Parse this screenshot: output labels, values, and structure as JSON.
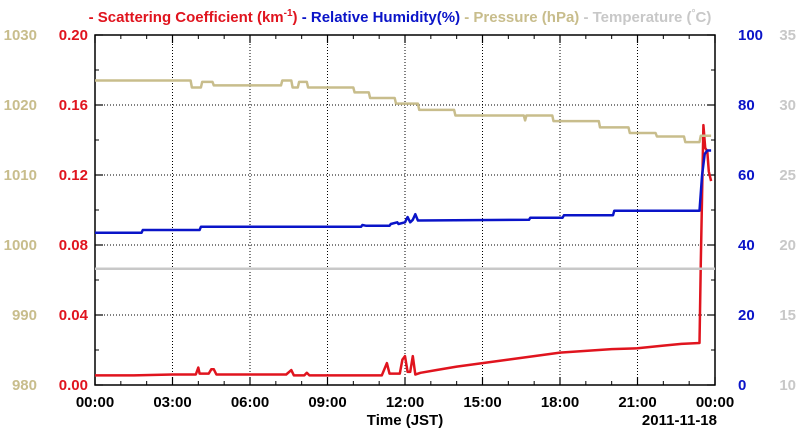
{
  "chart_data": {
    "type": "line",
    "legend": {
      "placement": "top",
      "entries": [
        {
          "prefix": "- ",
          "label": "Scattering Coefficient (km",
          "sup": "-1",
          "suffix": ")",
          "color": "#e0141e"
        },
        {
          "prefix": "- ",
          "label": "Relative Humidity(%)",
          "sup": "",
          "suffix": "",
          "color": "#0a14c8"
        },
        {
          "prefix": "- ",
          "label": "Pressure (hPa)",
          "sup": "",
          "suffix": "",
          "color": "#c8bd8c"
        },
        {
          "prefix": "- ",
          "label": "Temperature (",
          "sup": "°",
          "suffix": "C)",
          "color": "#c8c8c8"
        }
      ]
    },
    "xlabel": "Time (JST)",
    "date_label": "2011-11-18",
    "x_range_hours": [
      0,
      24
    ],
    "x_ticks": [
      {
        "v": 0,
        "label": "00:00"
      },
      {
        "v": 3,
        "label": "03:00"
      },
      {
        "v": 6,
        "label": "06:00"
      },
      {
        "v": 9,
        "label": "09:00"
      },
      {
        "v": 12,
        "label": "12:00"
      },
      {
        "v": 15,
        "label": "15:00"
      },
      {
        "v": 18,
        "label": "18:00"
      },
      {
        "v": 21,
        "label": "21:00"
      },
      {
        "v": 24,
        "label": "00:00"
      }
    ],
    "grid": true,
    "axes": {
      "pressure": {
        "side": "left-outer",
        "color": "#c8bd8c",
        "range": [
          980,
          1030
        ],
        "ticks": [
          "980",
          "990",
          "1000",
          "1010",
          "1020",
          "1030"
        ]
      },
      "scattering": {
        "side": "left-inner",
        "color": "#e0141e",
        "range": [
          0,
          0.2
        ],
        "ticks": [
          "0.00",
          "0.04",
          "0.08",
          "0.12",
          "0.16",
          "0.20"
        ]
      },
      "humidity": {
        "side": "right-inner",
        "color": "#0a14c8",
        "range": [
          0,
          100
        ],
        "ticks": [
          "0",
          "20",
          "40",
          "60",
          "80",
          "100"
        ]
      },
      "temperature": {
        "side": "right-outer",
        "color": "#c8c8c8",
        "range": [
          10,
          35
        ],
        "ticks": [
          "10",
          "15",
          "20",
          "25",
          "30",
          "35"
        ]
      }
    },
    "series": [
      {
        "name": "Scattering Coefficient (km-1)",
        "axis": "scattering",
        "color": "#e0141e",
        "points": [
          [
            0,
            0.0055
          ],
          [
            1.5,
            0.0055
          ],
          [
            3.0,
            0.006
          ],
          [
            3.9,
            0.006
          ],
          [
            4.0,
            0.01
          ],
          [
            4.05,
            0.0065
          ],
          [
            4.4,
            0.0065
          ],
          [
            4.5,
            0.009
          ],
          [
            4.6,
            0.009
          ],
          [
            4.7,
            0.006
          ],
          [
            7.4,
            0.006
          ],
          [
            7.6,
            0.0085
          ],
          [
            7.7,
            0.0055
          ],
          [
            8.1,
            0.0055
          ],
          [
            8.2,
            0.007
          ],
          [
            8.3,
            0.0055
          ],
          [
            11.1,
            0.0055
          ],
          [
            11.3,
            0.0125
          ],
          [
            11.4,
            0.0065
          ],
          [
            11.8,
            0.0065
          ],
          [
            11.9,
            0.0145
          ],
          [
            12.0,
            0.0165
          ],
          [
            12.1,
            0.0075
          ],
          [
            12.2,
            0.0075
          ],
          [
            12.3,
            0.0165
          ],
          [
            12.4,
            0.006
          ],
          [
            12.6,
            0.007
          ],
          [
            13.2,
            0.0085
          ],
          [
            14.0,
            0.0105
          ],
          [
            15.0,
            0.0125
          ],
          [
            16.0,
            0.0145
          ],
          [
            17.0,
            0.0165
          ],
          [
            18.0,
            0.0185
          ],
          [
            19.0,
            0.0195
          ],
          [
            20.0,
            0.0205
          ],
          [
            21.0,
            0.021
          ],
          [
            22.0,
            0.0225
          ],
          [
            22.7,
            0.0235
          ],
          [
            23.4,
            0.024
          ],
          [
            23.45,
            0.07
          ],
          [
            23.55,
            0.1485
          ],
          [
            23.62,
            0.1355
          ],
          [
            23.7,
            0.1335
          ],
          [
            23.76,
            0.122
          ],
          [
            23.85,
            0.1165
          ]
        ]
      },
      {
        "name": "Relative Humidity(%)",
        "axis": "humidity",
        "color": "#0a14c8",
        "points": [
          [
            0,
            43.5
          ],
          [
            1.8,
            43.5
          ],
          [
            1.85,
            44.3
          ],
          [
            4.05,
            44.3
          ],
          [
            4.1,
            45.2
          ],
          [
            10.3,
            45.2
          ],
          [
            10.35,
            45.7
          ],
          [
            10.5,
            45.5
          ],
          [
            11.4,
            45.5
          ],
          [
            11.45,
            46.0
          ],
          [
            11.7,
            46.5
          ],
          [
            11.75,
            46.0
          ],
          [
            12.0,
            46.5
          ],
          [
            12.1,
            48.0
          ],
          [
            12.2,
            46.5
          ],
          [
            12.3,
            47.2
          ],
          [
            12.4,
            48.8
          ],
          [
            12.5,
            47.0
          ],
          [
            16.8,
            47.2
          ],
          [
            16.85,
            47.8
          ],
          [
            18.1,
            47.8
          ],
          [
            18.15,
            48.5
          ],
          [
            20.05,
            48.5
          ],
          [
            20.1,
            49.8
          ],
          [
            23.4,
            49.8
          ],
          [
            23.5,
            60.0
          ],
          [
            23.6,
            66.0
          ],
          [
            23.7,
            67.0
          ],
          [
            23.85,
            67.0
          ]
        ]
      },
      {
        "name": "Pressure (hPa)",
        "axis": "pressure",
        "color": "#c8bd8c",
        "points": [
          [
            0,
            1023.5
          ],
          [
            3.7,
            1023.5
          ],
          [
            3.75,
            1022.5
          ],
          [
            4.1,
            1022.5
          ],
          [
            4.15,
            1023.3
          ],
          [
            4.55,
            1023.3
          ],
          [
            4.6,
            1022.8
          ],
          [
            7.2,
            1022.8
          ],
          [
            7.25,
            1023.5
          ],
          [
            7.6,
            1023.5
          ],
          [
            7.65,
            1022.5
          ],
          [
            7.85,
            1022.5
          ],
          [
            7.9,
            1023.3
          ],
          [
            8.2,
            1023.3
          ],
          [
            8.25,
            1022.5
          ],
          [
            10.0,
            1022.5
          ],
          [
            10.05,
            1021.8
          ],
          [
            10.6,
            1021.8
          ],
          [
            10.65,
            1021.0
          ],
          [
            11.6,
            1021.0
          ],
          [
            11.65,
            1020.2
          ],
          [
            12.5,
            1020.2
          ],
          [
            12.55,
            1019.3
          ],
          [
            13.9,
            1019.3
          ],
          [
            13.95,
            1018.5
          ],
          [
            16.6,
            1018.5
          ],
          [
            16.65,
            1017.8
          ],
          [
            16.7,
            1018.5
          ],
          [
            17.7,
            1018.5
          ],
          [
            17.75,
            1017.7
          ],
          [
            19.5,
            1017.7
          ],
          [
            19.55,
            1016.8
          ],
          [
            20.65,
            1016.8
          ],
          [
            20.7,
            1016.0
          ],
          [
            21.7,
            1016.0
          ],
          [
            21.75,
            1015.5
          ],
          [
            22.8,
            1015.5
          ],
          [
            22.85,
            1014.7
          ],
          [
            23.4,
            1014.7
          ],
          [
            23.45,
            1015.6
          ],
          [
            23.85,
            1015.6
          ]
        ]
      },
      {
        "name": "Temperature (C)",
        "axis": "temperature",
        "color": "#c8c8c8",
        "points": [
          [
            0,
            18.3
          ],
          [
            24,
            18.3
          ]
        ]
      }
    ]
  }
}
